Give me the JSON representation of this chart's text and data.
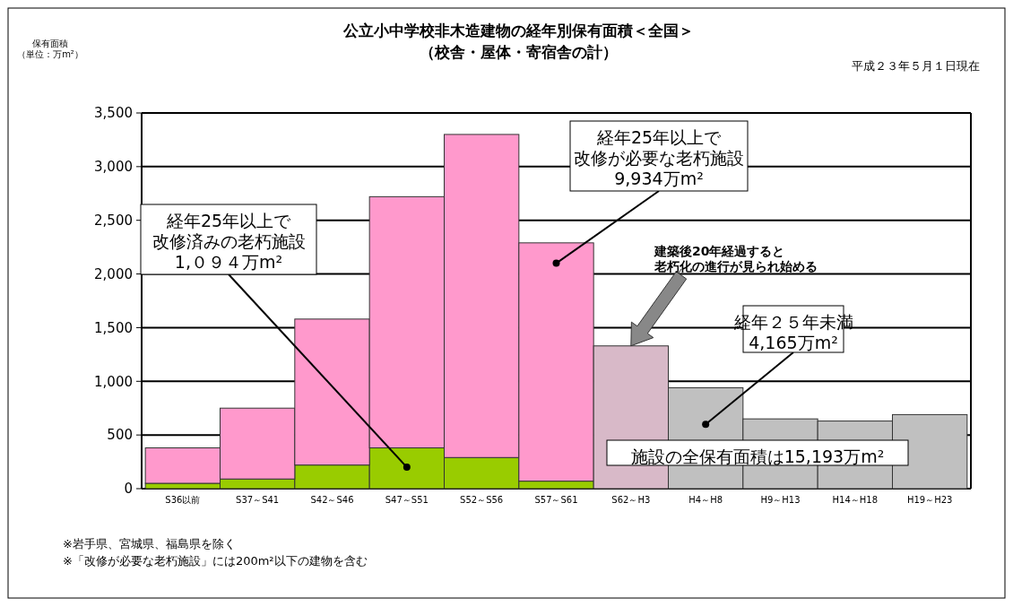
{
  "chart_data": {
    "type": "bar",
    "stacked": true,
    "title": "公立小中学校非木造建物の経年別保有面積＜全国＞",
    "subtitle": "（校舎・屋体・寄宿舎の計）",
    "categories": [
      "S36以前",
      "S37～S41",
      "S42～S46",
      "S47～S51",
      "S52～S56",
      "S57～S61",
      "S62～H3",
      "H4～H8",
      "H9～H13",
      "H14～H18",
      "H19～H23"
    ],
    "series": [
      {
        "color": "#99cc00",
        "values": [
          50,
          90,
          220,
          380,
          290,
          70,
          null,
          null,
          null,
          null,
          null
        ]
      },
      {
        "color": "#ff99cc",
        "values": [
          330,
          660,
          1360,
          2340,
          3010,
          2220,
          null,
          null,
          null,
          null,
          null
        ]
      },
      {
        "color": "#d8b9c8",
        "values": [
          null,
          null,
          null,
          null,
          null,
          null,
          1330,
          null,
          null,
          null,
          null
        ]
      },
      {
        "color": "#c0c0c0",
        "values": [
          null,
          null,
          null,
          null,
          null,
          null,
          null,
          940,
          650,
          630,
          690
        ]
      }
    ],
    "ylim": [
      0,
      3500
    ],
    "yticks": [
      0,
      500,
      {
        "value": 1000,
        "label": "1,000"
      },
      {
        "value": 1500,
        "label": "1,500"
      },
      {
        "value": 2000,
        "label": "2,000"
      },
      {
        "value": 2500,
        "label": "2,500"
      },
      {
        "value": 3000,
        "label": "3,000"
      },
      {
        "value": 3500,
        "label": "3,500"
      }
    ],
    "grid": "y",
    "annotations": [
      "平成２３年５月１日現在",
      {
        "text": "経年25年以上で改修済みの老朽施設1,０９４万m²",
        "x": "S47～S51",
        "y": 200
      },
      {
        "text": "経年25年以上で改修が必要な老朽施設9,934万m²",
        "x": "S57～S61",
        "y": 2100
      },
      {
        "text": "建築後20年経過すると老朽化の進行が見られ始める",
        "x": "S62～H3",
        "y": 1330
      },
      {
        "text": "経年２５年未満4,165万m²",
        "x": "H4～H8",
        "y": 600
      },
      "施設の全保有面積は15,193万m²",
      "※岩手県、宮城県、福島県を除く",
      "※「改修が必要な老朽施設」には200m²以下の建物を含む",
      "保有面積（単位：万m²）"
    ]
  }
}
